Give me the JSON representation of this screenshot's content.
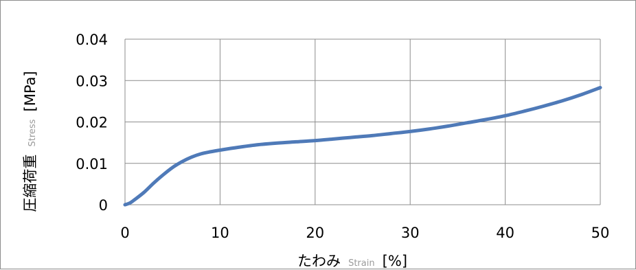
{
  "chart_data": {
    "type": "line",
    "x_tick_labels": [
      "0",
      "10",
      "20",
      "30",
      "40",
      "50"
    ],
    "y_tick_labels": [
      "0",
      "0.01",
      "0.02",
      "0.03",
      "0.04"
    ],
    "xlim": [
      0,
      50
    ],
    "ylim": [
      0,
      0.04
    ],
    "grid": true,
    "xlabel": {
      "main": "たわみ",
      "sub": "Strain",
      "unit": "[%]"
    },
    "ylabel": {
      "main": "圧縮荷重",
      "sub": "Stress",
      "unit": "[MPa]"
    },
    "series": [
      {
        "color": "#4f7ab8",
        "x": [
          0,
          0.5,
          1,
          2,
          3,
          4,
          5,
          6,
          7,
          8,
          9,
          10,
          12,
          14,
          16,
          18,
          20,
          22,
          24,
          26,
          28,
          30,
          32,
          34,
          36,
          38,
          40,
          42,
          44,
          46,
          48,
          50
        ],
        "y": [
          0,
          0.0004,
          0.0012,
          0.003,
          0.0052,
          0.0072,
          0.009,
          0.0104,
          0.0115,
          0.0123,
          0.0128,
          0.0132,
          0.0139,
          0.0145,
          0.0149,
          0.0152,
          0.0155,
          0.0159,
          0.0163,
          0.0167,
          0.0172,
          0.0177,
          0.0183,
          0.019,
          0.0198,
          0.0206,
          0.0215,
          0.0226,
          0.0238,
          0.0251,
          0.0266,
          0.0283
        ]
      }
    ]
  }
}
